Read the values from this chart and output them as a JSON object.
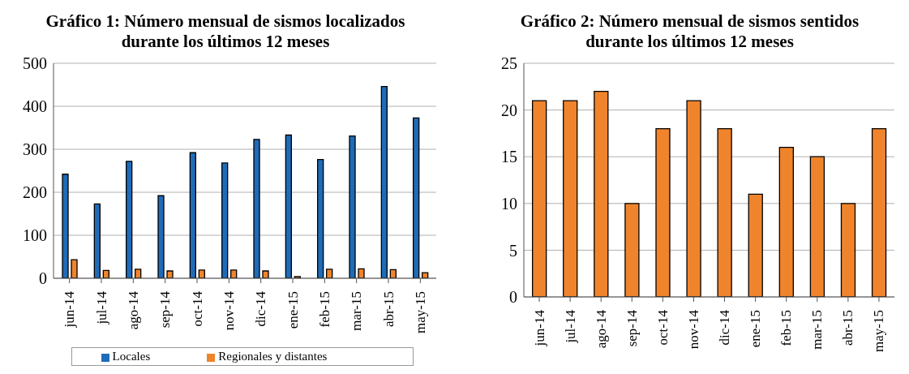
{
  "chart_data": [
    {
      "type": "bar",
      "title": "Gráfico 1: Número mensual de sismos localizados durante los últimos 12 meses",
      "categories": [
        "jun-14",
        "jul-14",
        "ago-14",
        "sep-14",
        "oct-14",
        "nov-14",
        "dic-14",
        "ene-15",
        "feb-15",
        "mar-15",
        "abr-15",
        "may-15"
      ],
      "series": [
        {
          "name": "Locales",
          "color": "#1f6bb8",
          "values": [
            242,
            173,
            272,
            192,
            292,
            268,
            323,
            333,
            276,
            331,
            446,
            373
          ]
        },
        {
          "name": "Regionales y distantes",
          "color": "#f0842c",
          "values": [
            43,
            18,
            21,
            17,
            19,
            19,
            17,
            4,
            21,
            22,
            20,
            13
          ]
        }
      ],
      "ylim": [
        0,
        500
      ],
      "yticks": [
        0,
        100,
        200,
        300,
        400,
        500
      ],
      "grid": "y",
      "legend": "bottom"
    },
    {
      "type": "bar",
      "title": "Gráfico 2: Número mensual de sismos sentidos durante los últimos 12 meses",
      "categories": [
        "jun-14",
        "jul-14",
        "ago-14",
        "sep-14",
        "oct-14",
        "nov-14",
        "dic-14",
        "ene-15",
        "feb-15",
        "mar-15",
        "abr-15",
        "may-15"
      ],
      "series": [
        {
          "color": "#f0842c",
          "values": [
            21,
            21,
            22,
            10,
            18,
            21,
            18,
            11,
            16,
            15,
            10,
            18
          ]
        }
      ],
      "ylim": [
        0,
        25
      ],
      "yticks": [
        0,
        5,
        10,
        15,
        20,
        25
      ],
      "grid": "y",
      "legend": false
    }
  ]
}
